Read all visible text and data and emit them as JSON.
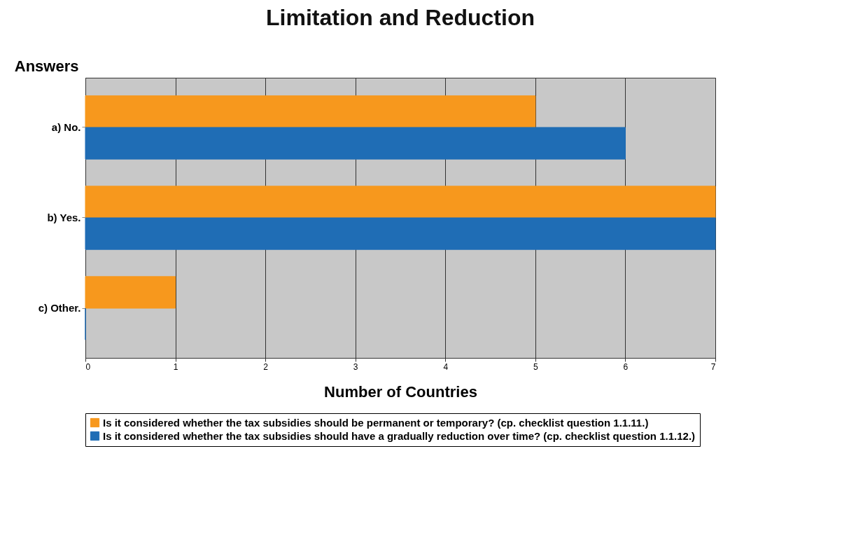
{
  "chart_data": {
    "type": "bar",
    "orientation": "horizontal",
    "title": "Limitation and Reduction",
    "xlabel": "Number of Countries",
    "ylabel": "Answers",
    "categories": [
      "a) No.",
      "b) Yes.",
      "c) Other."
    ],
    "series": [
      {
        "name": "Is it considered whether the tax subsidies should be permanent or temporary? (cp. checklist question 1.1.11.)",
        "color": "#f7981d",
        "values": [
          5,
          7,
          1
        ]
      },
      {
        "name": "Is it considered whether the tax subsidies should have a gradually reduction over time? (cp. checklist question 1.1.12.)",
        "color": "#1f6db5",
        "values": [
          6,
          7,
          0
        ]
      }
    ],
    "xlim": [
      0,
      7
    ],
    "xticks": [
      0,
      1,
      2,
      3,
      4,
      5,
      6,
      7
    ],
    "grid": "x",
    "legend": "bottom"
  }
}
